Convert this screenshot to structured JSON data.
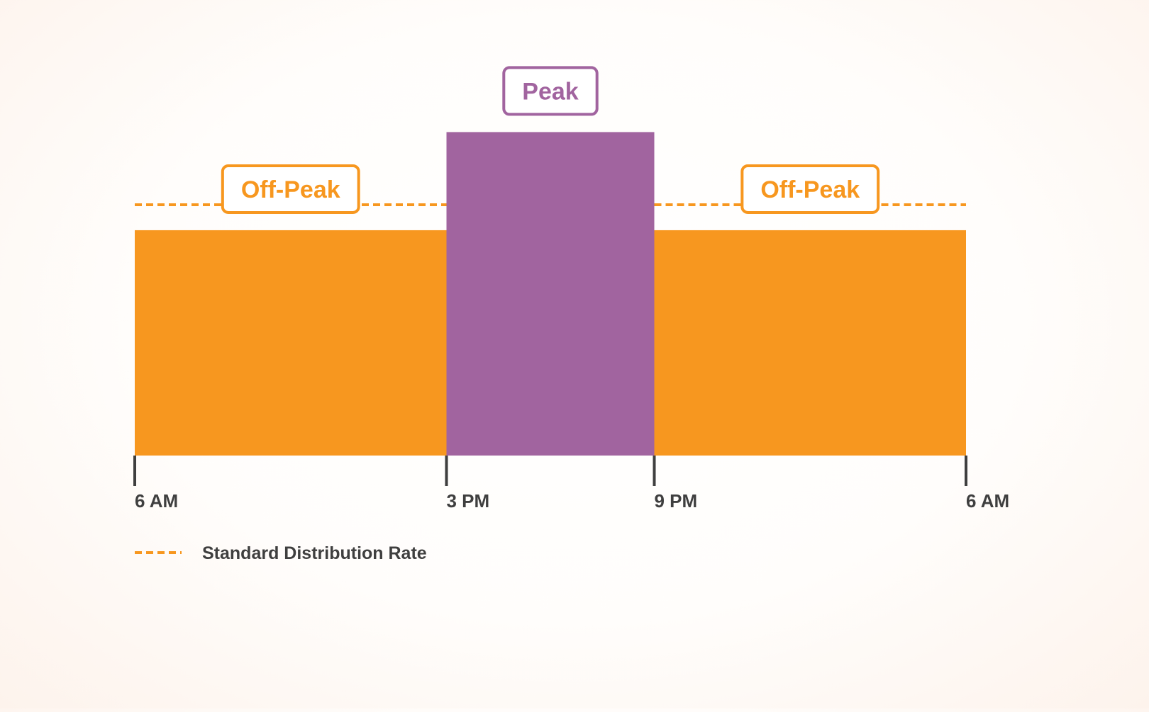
{
  "chart_data": {
    "type": "bar",
    "title": "",
    "xlabel": "",
    "ylabel": "",
    "x_ticks": [
      "6 AM",
      "3 PM",
      "9 PM",
      "6 AM"
    ],
    "x_range_hours": [
      0,
      24
    ],
    "ylim": [
      0,
      100
    ],
    "grid": false,
    "periods": [
      {
        "label": "Off-Peak",
        "start_hour": 0,
        "end_hour": 9,
        "value": 62,
        "color": "#F7971F"
      },
      {
        "label": "Peak",
        "start_hour": 9,
        "end_hour": 15,
        "value": 89,
        "color": "#A1649F"
      },
      {
        "label": "Off-Peak",
        "start_hour": 15,
        "end_hour": 24,
        "value": 62,
        "color": "#F7971F"
      }
    ],
    "reference_line": {
      "label": "Standard Distribution Rate",
      "value": 69,
      "style": "dashed",
      "color": "#F7971F"
    },
    "legend": {
      "position": "bottom-left",
      "entries": [
        "Standard Distribution Rate"
      ]
    }
  },
  "colors": {
    "offpeak": "#F7971F",
    "peak": "#A1649F",
    "axis": "#3F3F3F",
    "text": "#3F3F3F"
  }
}
